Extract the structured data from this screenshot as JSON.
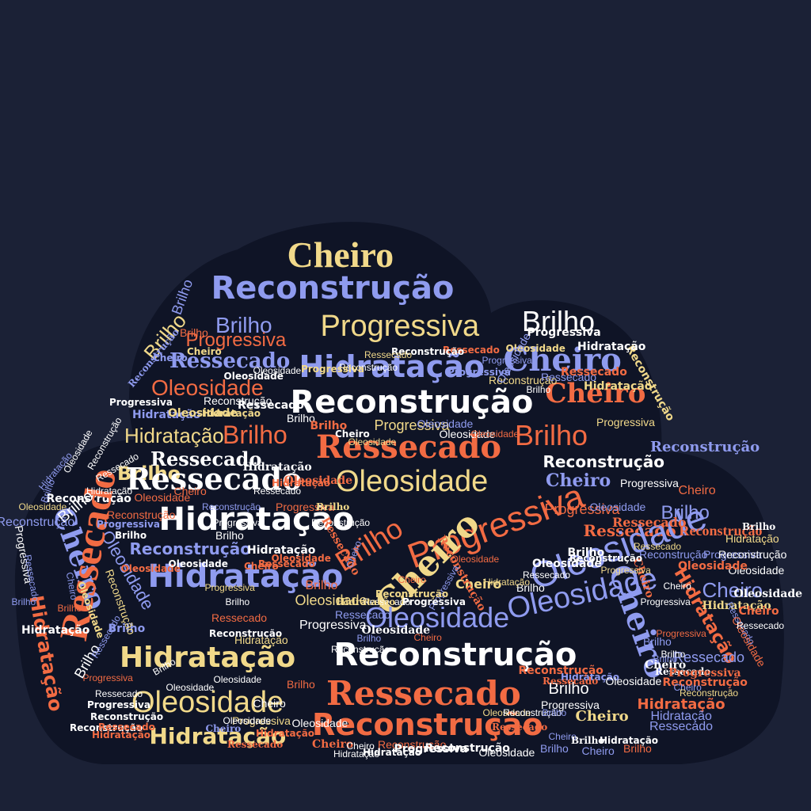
{
  "palette": {
    "background": "#1b2136",
    "cloud": "#0f1426",
    "white": "#ffffff",
    "yellow": "#f1d98a",
    "orange": "#f26b43",
    "periwinkle": "#8f9bef"
  },
  "words": [
    "Cheiro",
    "Reconstrução",
    "Progressiva",
    "Brilho",
    "Hidratação",
    "Ressecado",
    "Oleosidade",
    "Reconstrução",
    "Brilho",
    "Progressiva",
    "Cheiro",
    "Hidratação",
    "Ressecado",
    "Progressiva",
    "Reconstrução",
    "Cheiro",
    "Brilho",
    "Brilho",
    "Ressecado",
    "Progressiva",
    "Brilho",
    "Reconstrução",
    "Ressecado",
    "Oleosidade",
    "Cheiro",
    "Hidratação",
    "Progressiva",
    "Reconstrução",
    "Hidratação",
    "Brilho",
    "Ressecado",
    "Progressiva",
    "Cheiro",
    "Oleosidade",
    "Oleosidade",
    "Reconstrução",
    "Hidratação",
    "Ressecado",
    "Oleosidade",
    "Reconstrução",
    "Hidratação",
    "Cheiro",
    "Oleosidade",
    "Cheiro",
    "Brilho",
    "Hidratação",
    "Cheiro",
    "Brilho",
    "Oleosidade",
    "Ressecado",
    "Hidratação",
    "Cheiro",
    "Reconstrução",
    "Progressiva",
    "Oleosidade",
    "Brilho",
    "Reconstrução",
    "Brilho",
    "Oleosidade",
    "Progressiva",
    "Ressecado",
    "Brilho",
    "Cheiro",
    "Ressecado",
    "Reconstrução",
    "Progressiva",
    "Hidratação",
    "Ressecado",
    "Reconstrução",
    "Cheiro",
    "Oleosidade",
    "Brilho",
    "Cheiro",
    "Brilho",
    "Ressecado",
    "Reconstrução",
    "Hidratação",
    "Progressiva",
    "Cheiro",
    "Brilho",
    "Ressecado",
    "Oleosidade",
    "Oleosidade",
    "Progressiva",
    "Reconstrução",
    "Oleosidade",
    "Cheiro",
    "Ressecado",
    "Brilho",
    "Brilho",
    "Progressiva",
    "Hidratação",
    "Reconstrução",
    "Hidratação",
    "Oleosidade",
    "Cheiro",
    "Hidratação",
    "Progressiva",
    "Oleosidade",
    "Reconstrução",
    "Brilho",
    "Ressecado",
    "Cheiro",
    "Brilho",
    "Hidratação",
    "Hidratação",
    "Reconstrução",
    "Ressecado",
    "Oleosidade",
    "Cheiro",
    "Brilho",
    "Progressiva",
    "Brilho",
    "Brilho",
    "Ressecado",
    "Cheiro",
    "Progressiva",
    "Hidratação",
    "Cheiro",
    "Ressecado",
    "Oleosidade",
    "Reconstrução",
    "Hidratação",
    "Ressecado",
    "Oleosidade",
    "Reconstrução",
    "Hidratação",
    "Brilho",
    "Oleosidade",
    "Reconstrução",
    "Ressecado",
    "Cheiro",
    "Cheiro",
    "Progressiva",
    "Progressiva",
    "Reconstrução",
    "Brilho",
    "Oleosidade",
    "Ressecado",
    "Brilho",
    "Hidratação",
    "Cheiro",
    "Reconstrução",
    "Oleosidade",
    "Progressiva",
    "Cheiro",
    "Progressiva",
    "Reconstrução",
    "Ressecado",
    "Ressecado",
    "Hidratação",
    "Oleosidade",
    "Cheiro",
    "Brilho",
    "Reconstrução",
    "Progressiva",
    "Oleosidade",
    "Brilho",
    "Oleosidade",
    "Hidratação",
    "Ressecado",
    "Progressiva",
    "Brilho",
    "Reconstrução",
    "Ressecado",
    "Cheiro",
    "Oleosidade",
    "Hidratação",
    "Hidratação",
    "Ressecado",
    "Reconstrução",
    "Progressiva",
    "Brilho",
    "Cheiro",
    "Oleosidade",
    "Oleosidade",
    "Progressiva",
    "Brilho",
    "Ressecado",
    "Reconstrução",
    "Hidratação",
    "Brilho",
    "Reconstrução",
    "Ressecado",
    "Oleosidade",
    "Cheiro",
    "Brilho",
    "Hidratação",
    "Reconstrução",
    "Oleosidade",
    "Brilho",
    "Hidratação",
    "Oleosidade",
    "Reconstrução",
    "Ressecado",
    "Hidratação",
    "Reconstrução",
    "Progressiva",
    "Brilho",
    "Oleosidade",
    "Cheiro",
    "Progressiva",
    "Ressecado",
    "Brilho",
    "Progressiva",
    "Hidratação",
    "Oleosidade",
    "Hidratação",
    "Reconstrução",
    "Ressecado",
    "Brilho",
    "Brilho",
    "Cheiro",
    "Oleosidade",
    "Oleosidade",
    "Oleosidade",
    "Oleosidade",
    "Progressiva",
    "Progressiva",
    "Reconstrução",
    "Brilho",
    "Ressecado",
    "Ressecado",
    "Hidratação",
    "Reconstrução",
    "Hidratação",
    "Progressiva",
    "Oleosidade",
    "Oleosidade",
    "Ressecado",
    "Reconstrução",
    "Ressecado",
    "Reconstrução",
    "Progressiva",
    "Oleosidade",
    "Oleosidade",
    "Cheiro",
    "Cheiro",
    "Reconstrução",
    "Brilho"
  ]
}
